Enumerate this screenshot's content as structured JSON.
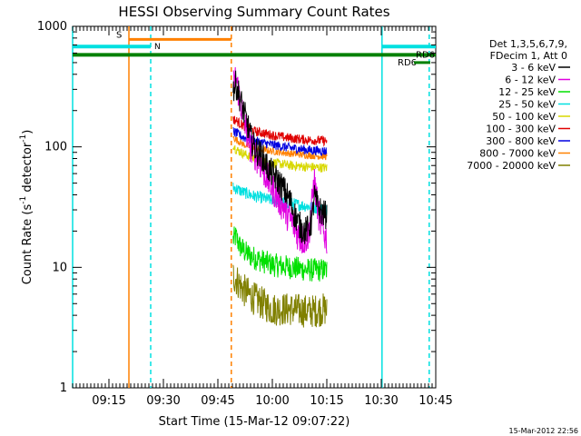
{
  "chart_data": {
    "type": "line",
    "title": "HESSI Observing Summary Count Rates",
    "xlabel": "Start Time (15-Mar-12 09:07:22)",
    "ylabel_main": "Count Rate (s",
    "ylabel_sup1": "-1",
    "ylabel_mid": " detector",
    "ylabel_sup2": "-1",
    "ylabel_end": ")",
    "ylabel": "Count Rate (s^-1 detector^-1)",
    "yscale": "log",
    "ylim": [
      1,
      1000
    ],
    "xlim_minutes": [
      0,
      100
    ],
    "x_ticks": [
      {
        "label": "09:15",
        "min": 10
      },
      {
        "label": "09:30",
        "min": 25
      },
      {
        "label": "09:45",
        "min": 40
      },
      {
        "label": "10:00",
        "min": 55
      },
      {
        "label": "10:15",
        "min": 70
      },
      {
        "label": "10:30",
        "min": 85
      },
      {
        "label": "10:45",
        "min": 100
      }
    ],
    "y_ticks": [
      {
        "label": "1",
        "value": 1
      },
      {
        "label": "10",
        "value": 10
      },
      {
        "label": "100",
        "value": 100
      },
      {
        "label": "1000",
        "value": 1000
      }
    ],
    "legend": {
      "header": [
        "Det 1,3,5,6,7,9,",
        "FDecim 1, Att 0"
      ],
      "placement": "right"
    },
    "series": [
      {
        "name": "3 - 6 keV",
        "color": "#000000",
        "noise": 0.12,
        "points": [
          [
            44.2,
            300
          ],
          [
            45,
            330
          ],
          [
            46,
            260
          ],
          [
            47,
            200
          ],
          [
            48,
            160
          ],
          [
            49,
            120
          ],
          [
            50,
            100
          ],
          [
            51,
            90
          ],
          [
            52,
            85
          ],
          [
            53,
            75
          ],
          [
            54,
            65
          ],
          [
            55,
            60
          ],
          [
            56,
            55
          ],
          [
            57,
            50
          ],
          [
            58,
            45
          ],
          [
            59,
            40
          ],
          [
            60,
            35
          ],
          [
            61,
            28
          ],
          [
            62,
            24
          ],
          [
            63,
            21
          ],
          [
            64,
            20
          ],
          [
            65,
            21
          ],
          [
            66,
            25
          ],
          [
            66.5,
            40
          ],
          [
            67,
            35
          ],
          [
            68,
            30
          ],
          [
            69,
            28
          ],
          [
            70,
            27
          ]
        ]
      },
      {
        "name": "6 - 12 keV",
        "color": "#e000e0",
        "noise": 0.14,
        "points": [
          [
            44.2,
            320
          ],
          [
            45,
            380
          ],
          [
            46,
            250
          ],
          [
            47,
            180
          ],
          [
            48,
            130
          ],
          [
            49,
            100
          ],
          [
            50,
            90
          ],
          [
            51,
            80
          ],
          [
            52,
            70
          ],
          [
            53,
            60
          ],
          [
            54,
            52
          ],
          [
            55,
            46
          ],
          [
            56,
            40
          ],
          [
            57,
            36
          ],
          [
            58,
            32
          ],
          [
            59,
            28
          ],
          [
            60,
            25
          ],
          [
            61,
            22
          ],
          [
            62,
            19
          ],
          [
            63,
            17
          ],
          [
            64,
            17
          ],
          [
            65,
            19
          ],
          [
            66,
            35
          ],
          [
            66.5,
            55
          ],
          [
            67,
            40
          ],
          [
            68,
            25
          ],
          [
            69,
            20
          ],
          [
            70,
            17
          ]
        ]
      },
      {
        "name": "12 - 25 keV",
        "color": "#00e000",
        "noise": 0.1,
        "points": [
          [
            44.2,
            17
          ],
          [
            45,
            18
          ],
          [
            46,
            15
          ],
          [
            48,
            13
          ],
          [
            50,
            12
          ],
          [
            55,
            10.5
          ],
          [
            60,
            10
          ],
          [
            65,
            9.5
          ],
          [
            70,
            9.5
          ]
        ]
      },
      {
        "name": "25 - 50 keV",
        "color": "#00e0e0",
        "noise": 0.05,
        "points": [
          [
            44.2,
            46
          ],
          [
            45,
            45
          ],
          [
            47,
            42
          ],
          [
            50,
            39
          ],
          [
            55,
            36
          ],
          [
            60,
            34
          ],
          [
            65,
            32
          ],
          [
            70,
            30
          ]
        ]
      },
      {
        "name": "50 - 100 keV",
        "color": "#d8d800",
        "noise": 0.04,
        "points": [
          [
            44.2,
            105
          ],
          [
            45,
            95
          ],
          [
            47,
            88
          ],
          [
            50,
            80
          ],
          [
            55,
            74
          ],
          [
            60,
            70
          ],
          [
            65,
            68
          ],
          [
            70,
            67
          ]
        ]
      },
      {
        "name": "100 - 300 keV",
        "color": "#e00000",
        "noise": 0.04,
        "points": [
          [
            44.2,
            170
          ],
          [
            45,
            165
          ],
          [
            47,
            150
          ],
          [
            50,
            135
          ],
          [
            55,
            125
          ],
          [
            60,
            118
          ],
          [
            65,
            114
          ],
          [
            70,
            112
          ]
        ]
      },
      {
        "name": "300 - 800 keV",
        "color": "#0000e0",
        "noise": 0.04,
        "points": [
          [
            44.2,
            135
          ],
          [
            45,
            130
          ],
          [
            47,
            120
          ],
          [
            50,
            112
          ],
          [
            55,
            104
          ],
          [
            60,
            98
          ],
          [
            65,
            94
          ],
          [
            70,
            92
          ]
        ]
      },
      {
        "name": "800 - 7000 keV",
        "color": "#ff8000",
        "noise": 0.03,
        "points": [
          [
            44.2,
            120
          ],
          [
            45,
            115
          ],
          [
            47,
            105
          ],
          [
            50,
            97
          ],
          [
            55,
            92
          ],
          [
            60,
            88
          ],
          [
            65,
            85
          ],
          [
            70,
            83
          ]
        ]
      },
      {
        "name": "7000 - 20000 keV",
        "color": "#808000",
        "noise": 0.14,
        "points": [
          [
            44.2,
            8.5
          ],
          [
            45,
            8
          ],
          [
            47,
            6.5
          ],
          [
            50,
            5.5
          ],
          [
            55,
            4.5
          ],
          [
            60,
            4.5
          ],
          [
            65,
            4.3
          ],
          [
            70,
            4.5
          ]
        ]
      }
    ],
    "markers": {
      "saa_line": {
        "label": "S",
        "start_min": 15.5,
        "end_min": 43.7,
        "value": 780,
        "color": "#ff8000"
      },
      "night_bars": [
        {
          "label": "N",
          "start_min": 0,
          "end_min": 21.5,
          "value": 680,
          "color": "#00e0e0"
        },
        {
          "label": "",
          "start_min": 85.2,
          "end_min": 100,
          "value": 680,
          "color": "#00e0e0"
        }
      ],
      "green_bar": {
        "start_min": 0,
        "end_min": 100,
        "value": 580,
        "color": "#008000"
      },
      "rd_labels": [
        {
          "label": "RD6",
          "min": 94.5,
          "value": 580,
          "color": "#008000"
        },
        {
          "label": "RD6",
          "min": 89.5,
          "value": 500,
          "color": "#008000",
          "bar_start": 94,
          "bar_end": 98.5
        }
      ],
      "vlines": [
        {
          "min": 0,
          "color": "#00e0e0",
          "dashed": false
        },
        {
          "min": 15.5,
          "color": "#ff8000",
          "dashed": false
        },
        {
          "min": 21.5,
          "color": "#00e0e0",
          "dashed": true
        },
        {
          "min": 43.7,
          "color": "#ff8000",
          "dashed": true
        },
        {
          "min": 85.2,
          "color": "#00e0e0",
          "dashed": false
        },
        {
          "min": 98.2,
          "color": "#00e0e0",
          "dashed": true
        }
      ]
    },
    "timestamp": "15-Mar-2012 22:56"
  }
}
